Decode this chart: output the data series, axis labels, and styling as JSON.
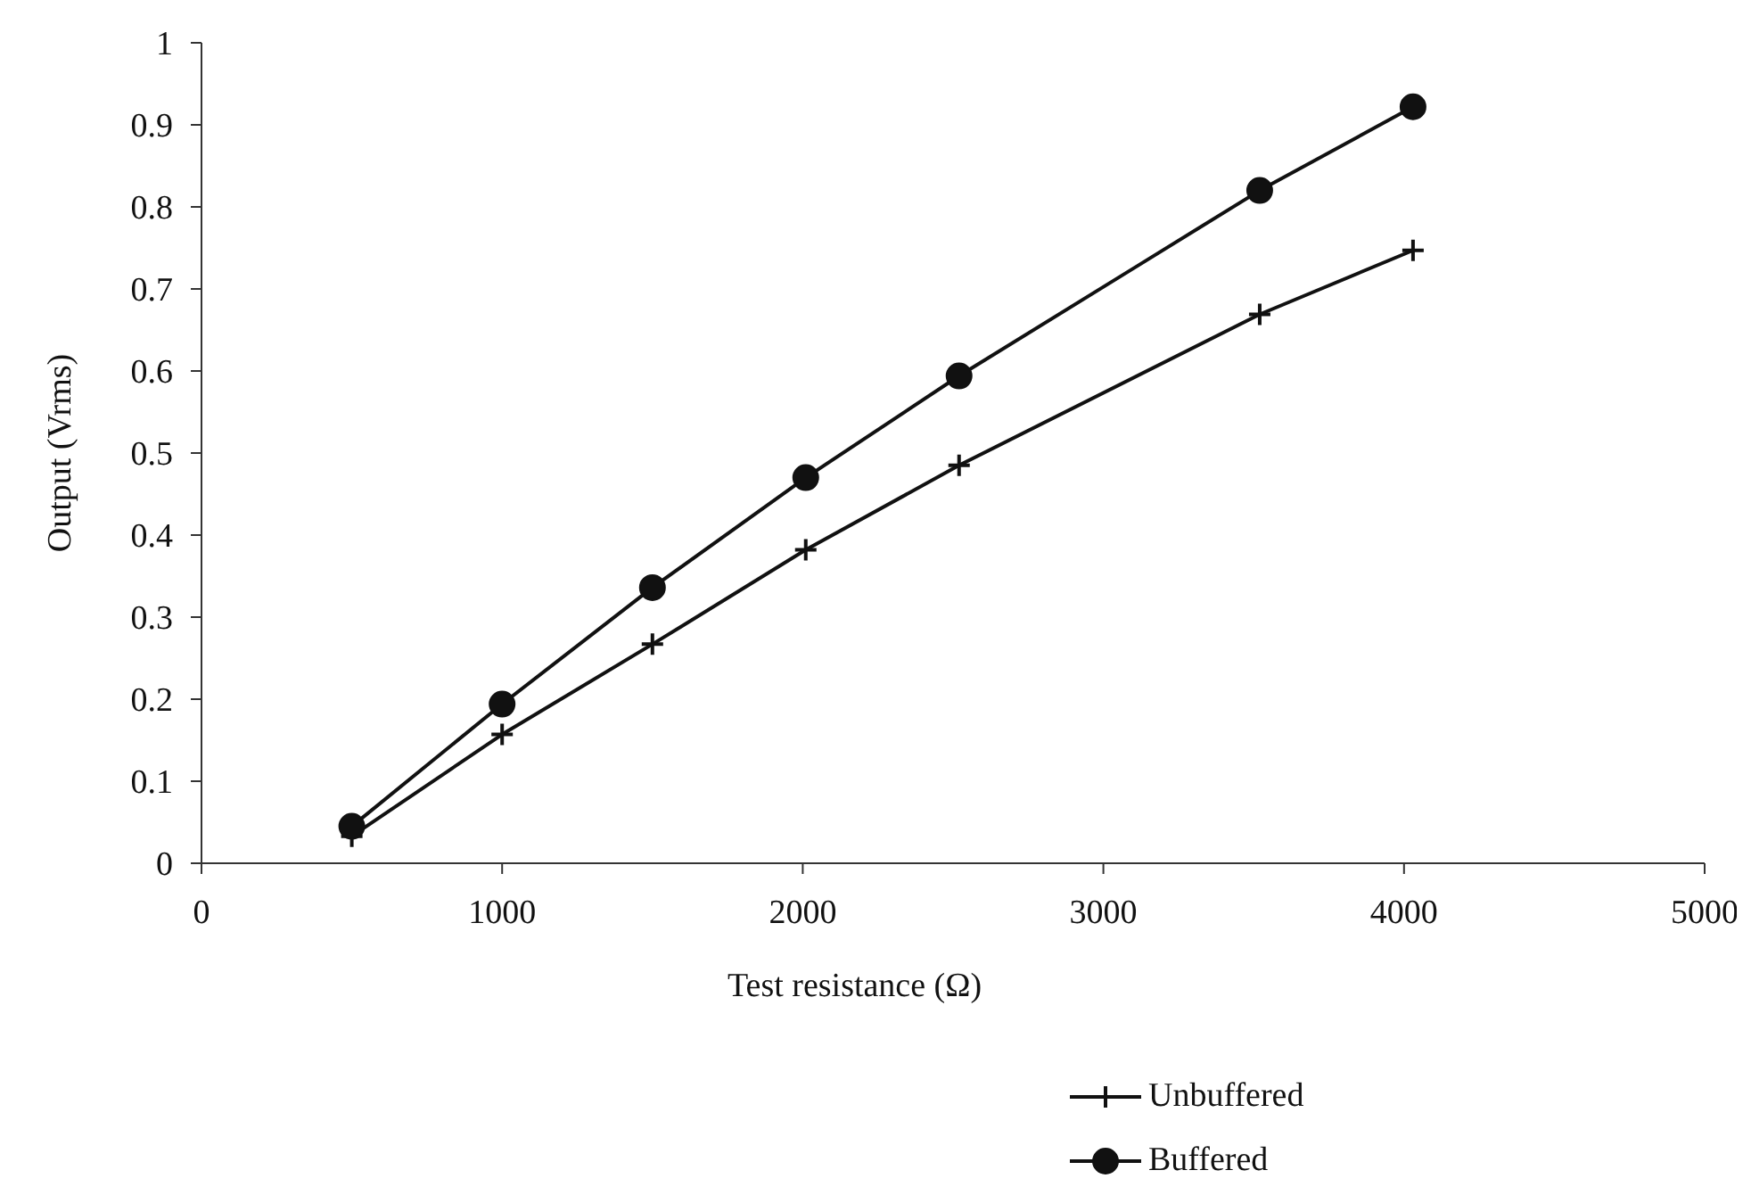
{
  "chart_data": {
    "type": "line",
    "xlabel": "Test resistance (Ω)",
    "ylabel": "Output (Vrms)",
    "xlim": [
      0,
      5000
    ],
    "xticks": [
      0,
      1000,
      2000,
      3000,
      4000,
      5000
    ],
    "ylim": [
      0,
      1
    ],
    "yticks": [
      0,
      0.1,
      0.2,
      0.3,
      0.4,
      0.5,
      0.6,
      0.7,
      0.8,
      0.9,
      1
    ],
    "grid": false,
    "legend": "bottom right",
    "line_style": "solid",
    "series": [
      {
        "name": "Unbuffered",
        "color": "#111111",
        "marker": "cross",
        "x": [
          500,
          1000,
          1500,
          2010,
          2520,
          3520,
          4030
        ],
        "values": [
          0.033,
          0.157,
          0.267,
          0.382,
          0.485,
          0.669,
          0.747
        ]
      },
      {
        "name": "Buffered",
        "color": "#111111",
        "marker": "circle",
        "x": [
          500,
          1000,
          1500,
          2010,
          2520,
          3520,
          4030
        ],
        "values": [
          0.045,
          0.194,
          0.336,
          0.47,
          0.594,
          0.82,
          0.922
        ]
      }
    ]
  }
}
